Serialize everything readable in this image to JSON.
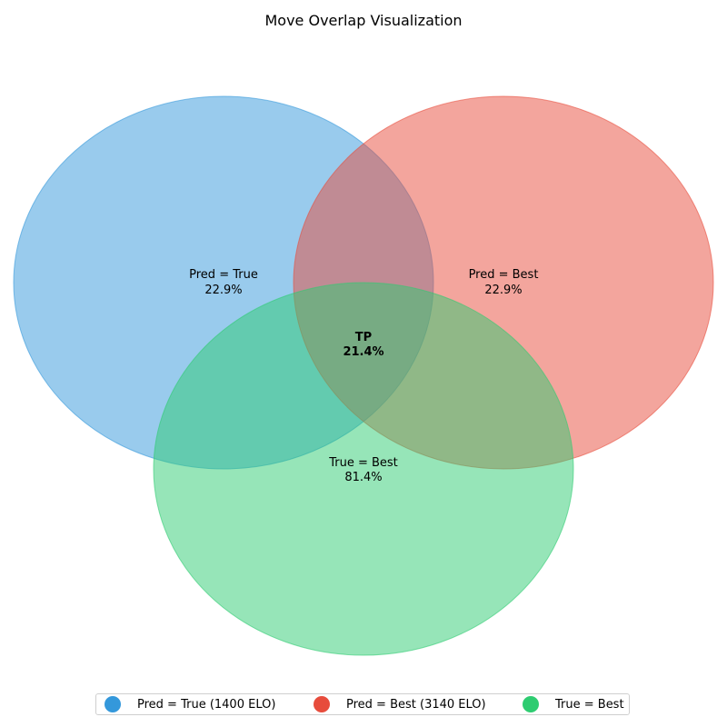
{
  "title": "Move Overlap Visualization",
  "regions": {
    "pred_true": {
      "label": "Pred = True",
      "value": "22.9%"
    },
    "pred_best": {
      "label": "Pred = Best",
      "value": "22.9%"
    },
    "true_best": {
      "label": "True = Best",
      "value": "81.4%"
    },
    "center": {
      "label": "TP",
      "value": "21.4%"
    }
  },
  "colors": {
    "blue": "#3498db",
    "red": "#e74c3c",
    "green": "#2ecc71"
  },
  "legend": [
    {
      "label": "Pred = True (1400 ELO)",
      "color": "#3498db"
    },
    {
      "label": "Pred = Best (3140 ELO)",
      "color": "#e74c3c"
    },
    {
      "label": "True = Best",
      "color": "#2ecc71"
    }
  ]
}
